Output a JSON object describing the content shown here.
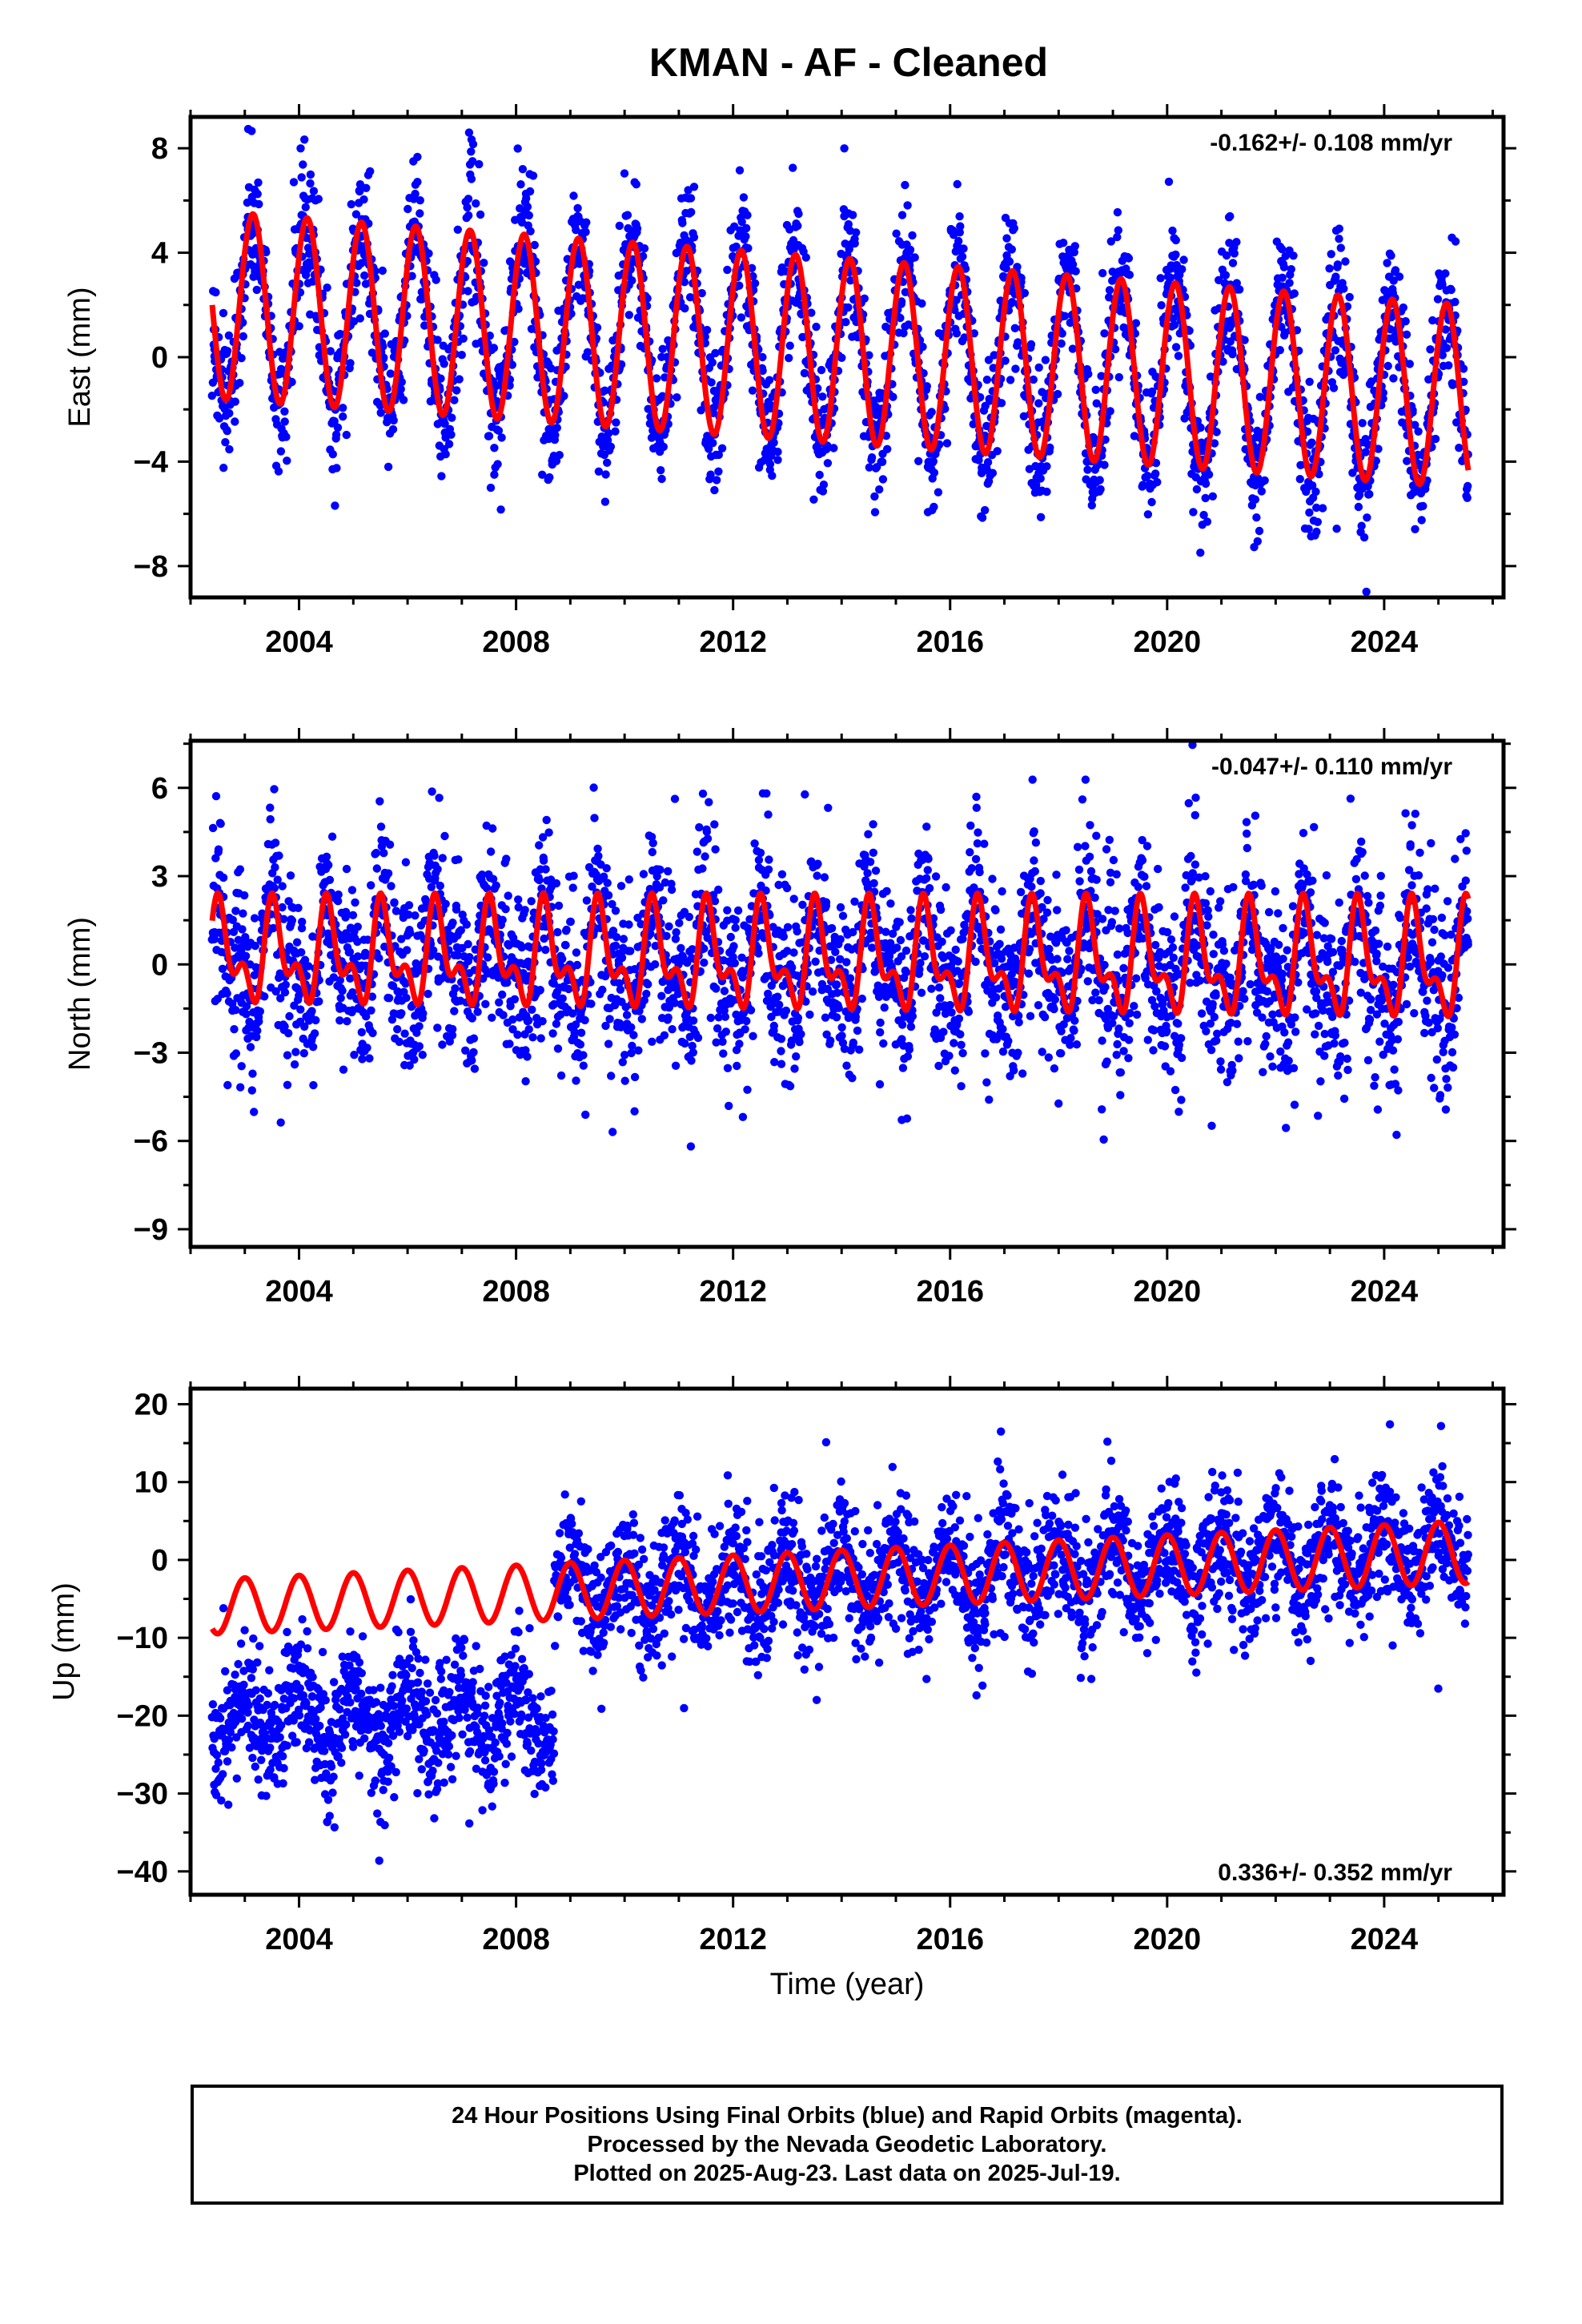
{
  "title": "KMAN  - AF - Cleaned",
  "xlabel": "Time (year)",
  "colors": {
    "scatter": "#0000ff",
    "fit": "#ff0000",
    "frame": "#000000"
  },
  "footer": {
    "line1": "24 Hour Positions Using Final Orbits (blue) and Rapid Orbits (magenta).",
    "line2": "Processed by the Nevada Geodetic Laboratory.",
    "line3": "Plotted on 2025-Aug-23. Last data on 2025-Jul-19."
  },
  "chart_data": [
    {
      "type": "scatter",
      "ylabel": "East (mm)",
      "rate_label": "-0.162+/- 0.108 mm/yr",
      "xlim": [
        2002.0,
        2026.2
      ],
      "ylim": [
        -9.2,
        9.2
      ],
      "xticks": [
        "2004",
        "2008",
        "2012",
        "2016",
        "2020",
        "2024"
      ],
      "yticks": [
        "8",
        "4",
        "0",
        "−4",
        "−8"
      ],
      "ytick_values": [
        8,
        4,
        0,
        -4,
        -8
      ],
      "data_range": [
        2002.4,
        2025.55
      ],
      "series": [
        {
          "name": "fit",
          "type": "line",
          "model": {
            "offset_start": 2.0,
            "offset_end": -1.5,
            "annual_amp_start": 3.6,
            "annual_amp_end": 3.5,
            "semiannual_amp": 0.0,
            "phase": 0.15
          }
        },
        {
          "name": "positions",
          "type": "scatter",
          "noise": 1.3
        }
      ]
    },
    {
      "type": "scatter",
      "ylabel": "North (mm)",
      "rate_label": "-0.047+/- 0.110 mm/yr",
      "xlim": [
        2002.0,
        2026.2
      ],
      "ylim": [
        -9.6,
        7.6
      ],
      "xticks": [
        "2004",
        "2008",
        "2012",
        "2016",
        "2020",
        "2024"
      ],
      "yticks": [
        "6",
        "3",
        "0",
        "−3",
        "−6",
        "−9"
      ],
      "ytick_values": [
        6,
        3,
        0,
        -3,
        -6,
        -9
      ],
      "data_range": [
        2002.4,
        2025.55
      ],
      "series": [
        {
          "name": "fit",
          "type": "line",
          "model": {
            "offset_start": 0.3,
            "offset_end": 0.0,
            "annual_amp_start": 1.3,
            "annual_amp_end": 1.6,
            "semiannual_amp": 0.9,
            "phase": 0.55
          }
        },
        {
          "name": "positions",
          "type": "scatter",
          "noise": 1.5
        }
      ]
    },
    {
      "type": "scatter",
      "ylabel": "Up (mm)",
      "rate_label": "0.336+/- 0.352 mm/yr",
      "xlim": [
        2002.0,
        2026.2
      ],
      "ylim": [
        -43,
        22
      ],
      "xticks": [
        "2004",
        "2008",
        "2012",
        "2016",
        "2020",
        "2024"
      ],
      "yticks": [
        "20",
        "10",
        "0",
        "−10",
        "−20",
        "−30",
        "−40"
      ],
      "ytick_values": [
        20,
        10,
        0,
        -10,
        -20,
        -30,
        -40
      ],
      "data_range": [
        2002.4,
        2025.55
      ],
      "step": {
        "year": 2008.7,
        "before_offset": -20
      },
      "series": [
        {
          "name": "fit",
          "type": "line",
          "model": {
            "offset_start": -6.0,
            "offset_end": 1.0,
            "annual_amp_start": 3.5,
            "annual_amp_end": 4.0,
            "semiannual_amp": 0.0,
            "phase": 0.0
          }
        },
        {
          "name": "positions",
          "type": "scatter",
          "noise": 4.0
        }
      ]
    }
  ]
}
